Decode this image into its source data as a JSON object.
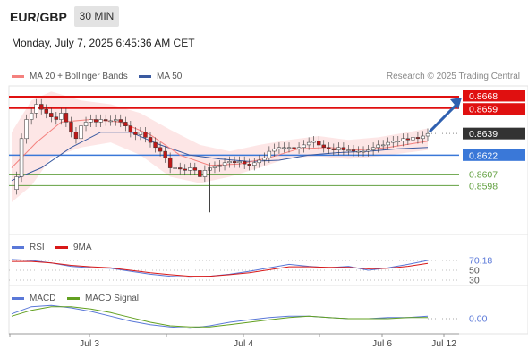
{
  "header": {
    "symbol": "EUR/GBP",
    "timeframe": "30 MIN",
    "datetime": "Monday, July 7, 2025 6:45:36 AM CET",
    "credit": "Research © 2025 Trading Central"
  },
  "legend": {
    "ma20_label": "MA 20 + Bollinger Bands",
    "ma50_label": "MA 50",
    "rsi_label": "RSI",
    "rsi_ma_label": "9MA",
    "macd_label": "MACD",
    "macd_signal_label": "MACD Signal"
  },
  "colors": {
    "ma20": "#f4817e",
    "ma50": "#3a5aa0",
    "band_fill": "#fde3e3",
    "resistance": "#e01010",
    "pivot": "#3a78d8",
    "support": "#62a040",
    "rsi": "#5a78d8",
    "rsi_ma": "#d81818",
    "macd": "#5a78d8",
    "macd_signal": "#62a020",
    "arrow": "#2f60b0",
    "last_price_bg": "#333333",
    "candle_up": "#ffffff",
    "candle_down": "#c01818"
  },
  "chart_data": [
    {
      "type": "candlestick",
      "title": "EUR/GBP",
      "xlabel": "",
      "ylabel": "",
      "ylim": [
        0.8561,
        0.8675
      ],
      "x_ticks": [
        "Jul 3",
        "Jul 4",
        "Jul 6",
        "Jul 12"
      ],
      "levels": [
        {
          "label": "0.8668",
          "value": 0.8668,
          "kind": "resistance"
        },
        {
          "label": "0.8659",
          "value": 0.8659,
          "kind": "resistance"
        },
        {
          "label": "0.8639",
          "value": 0.8639,
          "kind": "last"
        },
        {
          "label": "0.8622",
          "value": 0.8622,
          "kind": "pivot"
        },
        {
          "label": "0.8607",
          "value": 0.8607,
          "kind": "support"
        },
        {
          "label": "0.8598",
          "value": 0.8598,
          "kind": "support"
        }
      ],
      "price_points": [
        [
          0,
          0.8595
        ],
        [
          1,
          0.8605
        ],
        [
          2,
          0.8635
        ],
        [
          3,
          0.865
        ],
        [
          4,
          0.8655
        ],
        [
          5,
          0.8662
        ],
        [
          6,
          0.8658
        ],
        [
          7,
          0.8655
        ],
        [
          8,
          0.8652
        ],
        [
          9,
          0.865
        ],
        [
          10,
          0.8655
        ],
        [
          11,
          0.8648
        ],
        [
          12,
          0.864
        ],
        [
          13,
          0.8635
        ],
        [
          14,
          0.8645
        ],
        [
          15,
          0.8648
        ],
        [
          16,
          0.865
        ],
        [
          17,
          0.8648
        ],
        [
          18,
          0.865
        ],
        [
          19,
          0.8649
        ],
        [
          20,
          0.8649
        ],
        [
          21,
          0.865
        ],
        [
          22,
          0.8648
        ],
        [
          23,
          0.8645
        ],
        [
          24,
          0.864
        ],
        [
          25,
          0.8638
        ],
        [
          26,
          0.864
        ],
        [
          27,
          0.8636
        ],
        [
          28,
          0.8632
        ],
        [
          29,
          0.8628
        ],
        [
          30,
          0.8625
        ],
        [
          31,
          0.862
        ],
        [
          32,
          0.8612
        ],
        [
          33,
          0.8612
        ],
        [
          34,
          0.8611
        ],
        [
          35,
          0.861
        ],
        [
          36,
          0.8612
        ],
        [
          37,
          0.861
        ],
        [
          38,
          0.8605
        ],
        [
          39,
          0.861
        ],
        [
          40,
          0.8612
        ],
        [
          41,
          0.8613
        ],
        [
          42,
          0.8614
        ],
        [
          43,
          0.8616
        ],
        [
          44,
          0.8617
        ],
        [
          45,
          0.8616
        ],
        [
          46,
          0.8617
        ],
        [
          47,
          0.8615
        ],
        [
          48,
          0.8614
        ],
        [
          49,
          0.8616
        ],
        [
          50,
          0.8618
        ],
        [
          51,
          0.862
        ],
        [
          52,
          0.8625
        ],
        [
          53,
          0.8627
        ],
        [
          54,
          0.8628
        ],
        [
          55,
          0.8628
        ],
        [
          56,
          0.8628
        ],
        [
          57,
          0.8627
        ],
        [
          58,
          0.8628
        ],
        [
          59,
          0.863
        ],
        [
          60,
          0.8632
        ],
        [
          61,
          0.8633
        ],
        [
          62,
          0.863
        ],
        [
          63,
          0.8628
        ],
        [
          64,
          0.8627
        ],
        [
          65,
          0.8626
        ],
        [
          66,
          0.8628
        ],
        [
          67,
          0.8626
        ],
        [
          68,
          0.8626
        ],
        [
          69,
          0.8625
        ],
        [
          70,
          0.8625
        ],
        [
          71,
          0.8625
        ],
        [
          72,
          0.8626
        ],
        [
          73,
          0.8628
        ],
        [
          74,
          0.863
        ],
        [
          75,
          0.863
        ],
        [
          76,
          0.8632
        ],
        [
          77,
          0.8633
        ],
        [
          78,
          0.8633
        ],
        [
          79,
          0.8635
        ],
        [
          80,
          0.8634
        ],
        [
          81,
          0.8636
        ],
        [
          82,
          0.8635
        ],
        [
          83,
          0.8637
        ],
        [
          84,
          0.8639
        ]
      ],
      "wicks": [
        {
          "index": 40,
          "low": 0.8577,
          "high": 0.8612
        }
      ],
      "series": [
        {
          "name": "MA 20",
          "values": [
            [
              0,
              0.8612
            ],
            [
              5,
              0.8632
            ],
            [
              10,
              0.8648
            ],
            [
              16,
              0.865
            ],
            [
              22,
              0.8648
            ],
            [
              28,
              0.8638
            ],
            [
              34,
              0.8622
            ],
            [
              40,
              0.8614
            ],
            [
              46,
              0.8615
            ],
            [
              52,
              0.862
            ],
            [
              58,
              0.8627
            ],
            [
              64,
              0.8628
            ],
            [
              70,
              0.8626
            ],
            [
              76,
              0.8628
            ],
            [
              84,
              0.8633
            ]
          ]
        },
        {
          "name": "MA 50",
          "values": [
            [
              0,
              0.8602
            ],
            [
              6,
              0.8612
            ],
            [
              12,
              0.8628
            ],
            [
              18,
              0.864
            ],
            [
              24,
              0.864
            ],
            [
              30,
              0.863
            ],
            [
              36,
              0.8622
            ],
            [
              42,
              0.8619
            ],
            [
              48,
              0.8617
            ],
            [
              54,
              0.8618
            ],
            [
              60,
              0.8622
            ],
            [
              66,
              0.8624
            ],
            [
              72,
              0.8625
            ],
            [
              78,
              0.8627
            ],
            [
              84,
              0.8628
            ]
          ]
        }
      ],
      "bollinger_upper": [
        [
          0,
          0.864
        ],
        [
          4,
          0.8665
        ],
        [
          8,
          0.8672
        ],
        [
          14,
          0.8665
        ],
        [
          20,
          0.8662
        ],
        [
          26,
          0.8655
        ],
        [
          32,
          0.8642
        ],
        [
          38,
          0.863
        ],
        [
          44,
          0.8625
        ],
        [
          50,
          0.863
        ],
        [
          56,
          0.8634
        ],
        [
          62,
          0.8637
        ],
        [
          68,
          0.8634
        ],
        [
          74,
          0.8636
        ],
        [
          80,
          0.864
        ],
        [
          84,
          0.8643
        ]
      ],
      "bollinger_lower": [
        [
          0,
          0.8585
        ],
        [
          4,
          0.8598
        ],
        [
          8,
          0.862
        ],
        [
          14,
          0.8628
        ],
        [
          20,
          0.8632
        ],
        [
          26,
          0.8622
        ],
        [
          32,
          0.8605
        ],
        [
          38,
          0.86
        ],
        [
          44,
          0.8605
        ],
        [
          50,
          0.8612
        ],
        [
          56,
          0.862
        ],
        [
          62,
          0.8621
        ],
        [
          68,
          0.8619
        ],
        [
          74,
          0.8621
        ],
        [
          80,
          0.8624
        ],
        [
          84,
          0.8626
        ]
      ],
      "last_index": 84
    },
    {
      "type": "line",
      "title": "RSI",
      "ylabel": "",
      "ylim": [
        30,
        70
      ],
      "y_ticks": [
        {
          "label": "70.18",
          "value": 70.18
        },
        {
          "label": "50",
          "value": 50
        },
        {
          "label": "30",
          "value": 30
        }
      ],
      "series": [
        {
          "name": "RSI",
          "values": [
            [
              0,
              72
            ],
            [
              4,
              70
            ],
            [
              8,
              65
            ],
            [
              12,
              58
            ],
            [
              16,
              55
            ],
            [
              20,
              54
            ],
            [
              24,
              48
            ],
            [
              28,
              42
            ],
            [
              32,
              38
            ],
            [
              36,
              36
            ],
            [
              40,
              38
            ],
            [
              44,
              42
            ],
            [
              48,
              48
            ],
            [
              52,
              55
            ],
            [
              56,
              62
            ],
            [
              60,
              58
            ],
            [
              64,
              55
            ],
            [
              68,
              58
            ],
            [
              72,
              50
            ],
            [
              76,
              55
            ],
            [
              80,
              62
            ],
            [
              84,
              70
            ]
          ]
        },
        {
          "name": "9MA",
          "values": [
            [
              0,
              68
            ],
            [
              4,
              68
            ],
            [
              8,
              65
            ],
            [
              12,
              60
            ],
            [
              16,
              57
            ],
            [
              20,
              55
            ],
            [
              24,
              50
            ],
            [
              28,
              45
            ],
            [
              32,
              41
            ],
            [
              36,
              38
            ],
            [
              40,
              38
            ],
            [
              44,
              41
            ],
            [
              48,
              45
            ],
            [
              52,
              51
            ],
            [
              56,
              57
            ],
            [
              60,
              57
            ],
            [
              64,
              56
            ],
            [
              68,
              56
            ],
            [
              72,
              53
            ],
            [
              76,
              54
            ],
            [
              80,
              58
            ],
            [
              84,
              64
            ]
          ]
        }
      ]
    },
    {
      "type": "line",
      "title": "MACD",
      "ylabel": "",
      "ylim": [
        -0.0012,
        0.0012
      ],
      "y_ticks": [
        {
          "label": "0.00",
          "value": 0
        }
      ],
      "series": [
        {
          "name": "MACD",
          "values": [
            [
              0,
              0.0004
            ],
            [
              4,
              0.001
            ],
            [
              8,
              0.0011
            ],
            [
              12,
              0.0009
            ],
            [
              16,
              0.0006
            ],
            [
              20,
              0.0002
            ],
            [
              24,
              -0.0002
            ],
            [
              28,
              -0.0005
            ],
            [
              32,
              -0.0007
            ],
            [
              36,
              -0.0008
            ],
            [
              40,
              -0.0006
            ],
            [
              44,
              -0.0003
            ],
            [
              48,
              -0.0001
            ],
            [
              52,
              0.0001
            ],
            [
              56,
              0.0002
            ],
            [
              60,
              0.0002
            ],
            [
              64,
              0.0001
            ],
            [
              68,
              0.0
            ],
            [
              72,
              0.0
            ],
            [
              76,
              0.0001
            ],
            [
              80,
              0.0001
            ],
            [
              84,
              0.0002
            ]
          ]
        },
        {
          "name": "MACD Signal",
          "values": [
            [
              0,
              0.0002
            ],
            [
              4,
              0.0007
            ],
            [
              8,
              0.001
            ],
            [
              12,
              0.001
            ],
            [
              16,
              0.0008
            ],
            [
              20,
              0.0005
            ],
            [
              24,
              0.0001
            ],
            [
              28,
              -0.0003
            ],
            [
              32,
              -0.0006
            ],
            [
              36,
              -0.0007
            ],
            [
              40,
              -0.0007
            ],
            [
              44,
              -0.0005
            ],
            [
              48,
              -0.0003
            ],
            [
              52,
              -0.0001
            ],
            [
              56,
              0.0001
            ],
            [
              60,
              0.0002
            ],
            [
              64,
              0.0001
            ],
            [
              68,
              0.0
            ],
            [
              72,
              0.0
            ],
            [
              76,
              0.0
            ],
            [
              80,
              0.0001
            ],
            [
              84,
              0.0001
            ]
          ]
        }
      ]
    }
  ]
}
